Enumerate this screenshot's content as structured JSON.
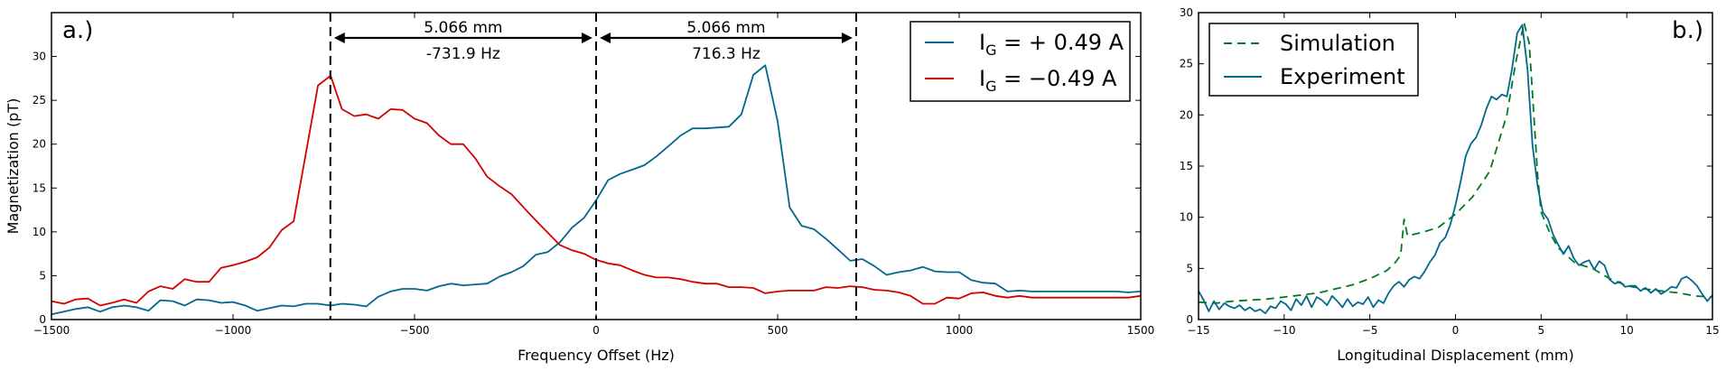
{
  "colors": {
    "blue": "#00688B",
    "red": "#D40000",
    "green": "#007A1F",
    "black": "#000000"
  },
  "chart_data": [
    {
      "type": "line",
      "panel_label": "a.)",
      "xlabel": "Frequency Offset (Hz)",
      "ylabel": "Magnetization (pT)",
      "xlim": [
        -1500,
        1500
      ],
      "ylim": [
        0,
        35
      ],
      "xticks": [
        -1500,
        -1000,
        -500,
        0,
        500,
        1000,
        1500
      ],
      "xtick_labels": [
        "−1500",
        "−1000",
        "−500",
        "0",
        "500",
        "1000",
        "1500"
      ],
      "yticks": [
        0,
        5,
        10,
        15,
        20,
        25,
        30
      ],
      "ytick_labels": [
        "0",
        "5",
        "10",
        "15",
        "20",
        "25",
        "30"
      ],
      "grid": false,
      "legend_position": "top-right",
      "legend": [
        {
          "label": "I",
          "subscript": "G",
          "rest": " = + 0.49 A",
          "color": "#00688B"
        },
        {
          "label": "I",
          "subscript": "G",
          "rest": " = −0.49 A",
          "color": "#D40000"
        }
      ],
      "vlines": [
        -731.9,
        0,
        716.3
      ],
      "annotations": [
        {
          "from": -731.9,
          "to": 0,
          "line1": "5.066 mm",
          "line2": "-731.9 Hz"
        },
        {
          "from": 0,
          "to": 716.3,
          "line1": "5.066 mm",
          "line2": "716.3 Hz"
        }
      ],
      "series": [
        {
          "color": "#00688B",
          "x": [
            -1500,
            -1466,
            -1433,
            -1400,
            -1366,
            -1333,
            -1300,
            -1266,
            -1233,
            -1200,
            -1166,
            -1133,
            -1100,
            -1066,
            -1033,
            -1000,
            -966,
            -933,
            -900,
            -866,
            -833,
            -800,
            -766,
            -731,
            -700,
            -666,
            -633,
            -600,
            -566,
            -533,
            -500,
            -466,
            -433,
            -400,
            -366,
            -333,
            -300,
            -266,
            -233,
            -200,
            -166,
            -133,
            -100,
            -66,
            -33,
            0,
            33,
            66,
            100,
            133,
            166,
            200,
            233,
            266,
            300,
            333,
            366,
            400,
            433,
            466,
            500,
            533,
            566,
            600,
            633,
            666,
            700,
            733,
            766,
            800,
            833,
            866,
            900,
            933,
            966,
            1000,
            1033,
            1066,
            1100,
            1133,
            1166,
            1200,
            1233,
            1266,
            1300,
            1333,
            1366,
            1400,
            1433,
            1466,
            1500
          ],
          "y": [
            0.6,
            0.9,
            1.2,
            1.4,
            0.9,
            1.4,
            1.6,
            1.4,
            1.0,
            2.2,
            2.1,
            1.6,
            2.3,
            2.2,
            1.9,
            2.0,
            1.6,
            1.0,
            1.3,
            1.6,
            1.5,
            1.8,
            1.8,
            1.6,
            1.8,
            1.7,
            1.5,
            2.6,
            3.2,
            3.5,
            3.5,
            3.3,
            3.8,
            4.1,
            3.9,
            4.0,
            4.1,
            4.9,
            5.4,
            6.1,
            7.4,
            7.7,
            8.8,
            10.5,
            11.6,
            13.6,
            15.9,
            16.6,
            17.1,
            17.6,
            18.6,
            19.8,
            21.0,
            21.8,
            21.8,
            21.9,
            22.0,
            23.4,
            27.9,
            29.0,
            22.6,
            12.8,
            10.7,
            10.3,
            9.2,
            8.0,
            6.7,
            6.9,
            6.1,
            5.1,
            5.4,
            5.6,
            6.0,
            5.5,
            5.4,
            5.4,
            4.5,
            4.2,
            4.1,
            3.2,
            3.3,
            3.2,
            3.2,
            3.2,
            3.2,
            3.2,
            3.2,
            3.2,
            3.2,
            3.1,
            3.2
          ]
        },
        {
          "color": "#D40000",
          "x": [
            -1500,
            -1466,
            -1433,
            -1400,
            -1366,
            -1333,
            -1300,
            -1266,
            -1233,
            -1200,
            -1166,
            -1133,
            -1100,
            -1066,
            -1033,
            -1000,
            -966,
            -933,
            -900,
            -866,
            -833,
            -800,
            -766,
            -731,
            -700,
            -666,
            -633,
            -600,
            -566,
            -533,
            -500,
            -466,
            -433,
            -400,
            -366,
            -333,
            -300,
            -266,
            -233,
            -200,
            -166,
            -133,
            -100,
            -66,
            -33,
            0,
            33,
            66,
            100,
            133,
            166,
            200,
            233,
            266,
            300,
            333,
            366,
            400,
            433,
            466,
            500,
            533,
            566,
            600,
            633,
            666,
            700,
            733,
            766,
            800,
            833,
            866,
            900,
            933,
            966,
            1000,
            1033,
            1066,
            1100,
            1133,
            1166,
            1200,
            1233,
            1266,
            1300,
            1333,
            1366,
            1400,
            1433,
            1466,
            1500
          ],
          "y": [
            2.1,
            1.8,
            2.3,
            2.4,
            1.6,
            1.9,
            2.3,
            1.9,
            3.2,
            3.8,
            3.5,
            4.6,
            4.3,
            4.3,
            5.9,
            6.2,
            6.6,
            7.1,
            8.2,
            10.2,
            11.2,
            18.8,
            26.7,
            27.8,
            24.0,
            23.2,
            23.4,
            22.9,
            24.0,
            23.9,
            22.9,
            22.4,
            21.0,
            20.0,
            20.0,
            18.4,
            16.3,
            15.2,
            14.3,
            12.8,
            11.3,
            9.9,
            8.5,
            7.9,
            7.5,
            6.8,
            6.4,
            6.2,
            5.6,
            5.1,
            4.8,
            4.8,
            4.6,
            4.3,
            4.1,
            4.1,
            3.7,
            3.7,
            3.6,
            3.0,
            3.2,
            3.3,
            3.3,
            3.3,
            3.7,
            3.6,
            3.8,
            3.7,
            3.4,
            3.3,
            3.1,
            2.7,
            1.8,
            1.8,
            2.5,
            2.4,
            3.0,
            3.1,
            2.7,
            2.5,
            2.7,
            2.5,
            2.5,
            2.5,
            2.5,
            2.5,
            2.5,
            2.5,
            2.5,
            2.5,
            2.7
          ]
        }
      ]
    },
    {
      "type": "line",
      "panel_label": "b.)",
      "xlabel": "Longitudinal Displacement (mm)",
      "ylabel": "",
      "xlim": [
        -15,
        15
      ],
      "ylim": [
        0,
        30
      ],
      "xticks": [
        -15,
        -10,
        -5,
        0,
        5,
        10,
        15
      ],
      "xtick_labels": [
        "−15",
        "−10",
        "−5",
        "0",
        "5",
        "10",
        "15"
      ],
      "yticks": [
        0,
        5,
        10,
        15,
        20,
        25,
        30
      ],
      "ytick_labels": [
        "0",
        "5",
        "10",
        "15",
        "20",
        "25",
        "30"
      ],
      "grid": false,
      "legend_position": "top-left",
      "legend": [
        {
          "label": "Simulation",
          "color": "#007A1F",
          "dash": true
        },
        {
          "label": "Experiment",
          "color": "#00688B",
          "dash": false
        }
      ],
      "series": [
        {
          "name": "Simulation",
          "color": "#007A1F",
          "dash": true,
          "x": [
            -15,
            -14,
            -13,
            -12,
            -11,
            -10,
            -9,
            -8,
            -7,
            -6,
            -5,
            -4,
            -3.5,
            -3.2,
            -3.0,
            -2.8,
            -2.5,
            -2,
            -1,
            0,
            1,
            2,
            3,
            3.5,
            4,
            4.3,
            4.5,
            4.8,
            5,
            5.5,
            6,
            7,
            8,
            9,
            10,
            11,
            12,
            13,
            14,
            15
          ],
          "y": [
            1.7,
            1.6,
            1.8,
            1.9,
            2.0,
            2.2,
            2.4,
            2.6,
            3.0,
            3.4,
            4.0,
            4.8,
            5.6,
            6.3,
            9.8,
            8.2,
            8.3,
            8.5,
            9.0,
            10.3,
            12.0,
            14.5,
            20.0,
            25.0,
            29.0,
            27.0,
            22.0,
            14.0,
            10.5,
            8.5,
            7.0,
            5.5,
            5.0,
            4.0,
            3.3,
            3.0,
            2.8,
            2.6,
            2.3,
            2.2
          ]
        },
        {
          "name": "Experiment",
          "color": "#00688B",
          "dash": false,
          "x": [
            -15,
            -14.7,
            -14.4,
            -14.1,
            -13.8,
            -13.5,
            -13.2,
            -12.9,
            -12.6,
            -12.3,
            -12,
            -11.7,
            -11.4,
            -11.1,
            -10.8,
            -10.5,
            -10.2,
            -9.9,
            -9.6,
            -9.3,
            -9,
            -8.7,
            -8.4,
            -8.1,
            -7.8,
            -7.5,
            -7.2,
            -6.9,
            -6.6,
            -6.3,
            -6,
            -5.7,
            -5.4,
            -5.1,
            -4.8,
            -4.5,
            -4.2,
            -3.9,
            -3.6,
            -3.3,
            -3,
            -2.7,
            -2.4,
            -2.1,
            -1.8,
            -1.5,
            -1.2,
            -0.9,
            -0.6,
            -0.3,
            0,
            0.3,
            0.6,
            0.9,
            1.2,
            1.5,
            1.8,
            2.1,
            2.4,
            2.7,
            3,
            3.3,
            3.6,
            3.9,
            4.2,
            4.5,
            4.8,
            5.1,
            5.4,
            5.7,
            6,
            6.3,
            6.6,
            6.9,
            7.2,
            7.5,
            7.8,
            8.1,
            8.4,
            8.7,
            9,
            9.3,
            9.6,
            9.9,
            10.2,
            10.5,
            10.8,
            11.1,
            11.4,
            11.7,
            12,
            12.3,
            12.6,
            12.9,
            13.2,
            13.5,
            13.8,
            14.1,
            14.4,
            14.7,
            15
          ],
          "y": [
            2.8,
            1.9,
            0.8,
            1.8,
            1.0,
            1.6,
            1.3,
            1.1,
            1.4,
            0.9,
            1.2,
            0.8,
            1.0,
            0.6,
            1.3,
            1.1,
            1.8,
            1.5,
            0.9,
            2.0,
            1.4,
            2.3,
            1.2,
            2.2,
            1.9,
            1.4,
            2.3,
            1.8,
            1.2,
            2.0,
            1.3,
            1.7,
            1.5,
            2.2,
            1.2,
            1.9,
            1.6,
            2.6,
            3.3,
            3.7,
            3.2,
            3.9,
            4.2,
            4.0,
            4.7,
            5.6,
            6.3,
            7.5,
            8.0,
            9.3,
            11.2,
            13.5,
            16.0,
            17.2,
            17.8,
            19.0,
            20.6,
            21.8,
            21.5,
            22.0,
            21.8,
            24.5,
            28.0,
            28.8,
            24.5,
            17.0,
            13.0,
            10.5,
            9.8,
            8.3,
            7.3,
            6.4,
            7.2,
            6.0,
            5.3,
            5.6,
            5.8,
            4.9,
            5.7,
            5.3,
            3.9,
            3.5,
            3.7,
            3.2,
            3.3,
            3.3,
            2.8,
            3.1,
            2.6,
            3.0,
            2.5,
            2.8,
            3.2,
            3.1,
            4.0,
            4.2,
            3.8,
            3.3,
            2.5,
            1.8,
            2.4
          ]
        }
      ]
    }
  ]
}
